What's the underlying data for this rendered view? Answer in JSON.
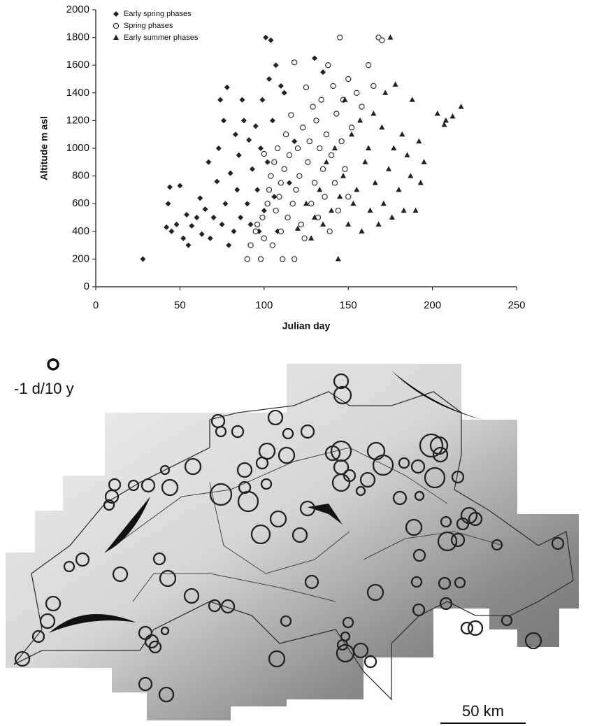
{
  "chart_data": {
    "type": "scatter",
    "x_label": "Julian day",
    "y_label": "Altitude m asl",
    "xlim": [
      0,
      250
    ],
    "xticks": [
      0,
      50,
      100,
      150,
      200,
      250
    ],
    "ylim": [
      0,
      2000
    ],
    "yticks": [
      0,
      200,
      400,
      600,
      800,
      1000,
      1200,
      1400,
      1600,
      1800,
      2000
    ],
    "grid": false,
    "legend": "upper-left",
    "series": [
      {
        "name": "Early spring phases",
        "color": "#222222",
        "marker": "diamond",
        "x": [
          28,
          42,
          43,
          44,
          45,
          48,
          50,
          52,
          54,
          55,
          57,
          60,
          62,
          63,
          65,
          67,
          68,
          70,
          72,
          73,
          74,
          75,
          76,
          77,
          78,
          79,
          80,
          82,
          83,
          84,
          85,
          86,
          87,
          88,
          90,
          91,
          92,
          93,
          95,
          96,
          97,
          98,
          99,
          100,
          101,
          102,
          103,
          104,
          105,
          106,
          107,
          108,
          110,
          112,
          115,
          118,
          130,
          135
        ],
        "values": [
          200,
          430,
          600,
          720,
          400,
          450,
          730,
          350,
          520,
          300,
          440,
          500,
          640,
          380,
          560,
          900,
          350,
          500,
          760,
          1000,
          1350,
          450,
          1200,
          600,
          1440,
          300,
          820,
          400,
          1100,
          700,
          950,
          500,
          1350,
          1200,
          600,
          1060,
          450,
          850,
          1160,
          700,
          400,
          1000,
          1350,
          550,
          1800,
          900,
          1500,
          1780,
          1200,
          650,
          1600,
          400,
          1450,
          1400,
          750,
          1050,
          1650,
          1550
        ]
      },
      {
        "name": "Spring phases",
        "color": "#222222",
        "marker": "circle",
        "x": [
          90,
          92,
          95,
          96,
          98,
          99,
          100,
          100,
          102,
          103,
          104,
          105,
          106,
          107,
          108,
          109,
          110,
          110,
          111,
          112,
          113,
          114,
          115,
          116,
          117,
          118,
          118,
          119,
          120,
          121,
          122,
          123,
          124,
          125,
          126,
          127,
          128,
          129,
          130,
          131,
          132,
          133,
          134,
          135,
          136,
          137,
          138,
          139,
          140,
          141,
          142,
          143,
          144,
          145,
          146,
          147,
          148,
          150,
          150,
          152,
          155,
          158,
          162,
          165,
          168,
          170
        ],
        "values": [
          200,
          300,
          400,
          450,
          200,
          500,
          350,
          960,
          600,
          700,
          800,
          300,
          900,
          550,
          1000,
          650,
          750,
          400,
          200,
          850,
          1100,
          500,
          950,
          1240,
          600,
          200,
          1620,
          700,
          1000,
          800,
          450,
          1150,
          350,
          1440,
          900,
          1050,
          600,
          1300,
          750,
          1200,
          500,
          1000,
          1350,
          850,
          650,
          1100,
          1600,
          400,
          950,
          1450,
          750,
          1250,
          550,
          1800,
          1050,
          1350,
          850,
          1500,
          650,
          1150,
          1400,
          1300,
          1600,
          1450,
          1800,
          1780
        ]
      },
      {
        "name": "Early summer phases",
        "color": "#222222",
        "marker": "triangle",
        "x": [
          120,
          125,
          128,
          130,
          133,
          135,
          137,
          140,
          142,
          144,
          145,
          147,
          148,
          150,
          152,
          153,
          155,
          157,
          158,
          160,
          162,
          163,
          165,
          166,
          168,
          170,
          171,
          172,
          174,
          175,
          176,
          177,
          178,
          180,
          182,
          183,
          185,
          187,
          188,
          190,
          192,
          193,
          195,
          203,
          207,
          208,
          212,
          217
        ],
        "values": [
          420,
          600,
          350,
          500,
          700,
          450,
          900,
          550,
          1000,
          200,
          650,
          800,
          1350,
          450,
          1100,
          600,
          700,
          1200,
          400,
          900,
          1000,
          550,
          1250,
          750,
          450,
          1150,
          600,
          1400,
          850,
          1800,
          500,
          1000,
          1460,
          700,
          1100,
          550,
          950,
          800,
          1350,
          550,
          1050,
          750,
          900,
          1250,
          1170,
          1200,
          1230,
          1300
        ]
      }
    ]
  },
  "map": {
    "legend_label": "-1 d/10 y",
    "scale_label": "50 km"
  }
}
